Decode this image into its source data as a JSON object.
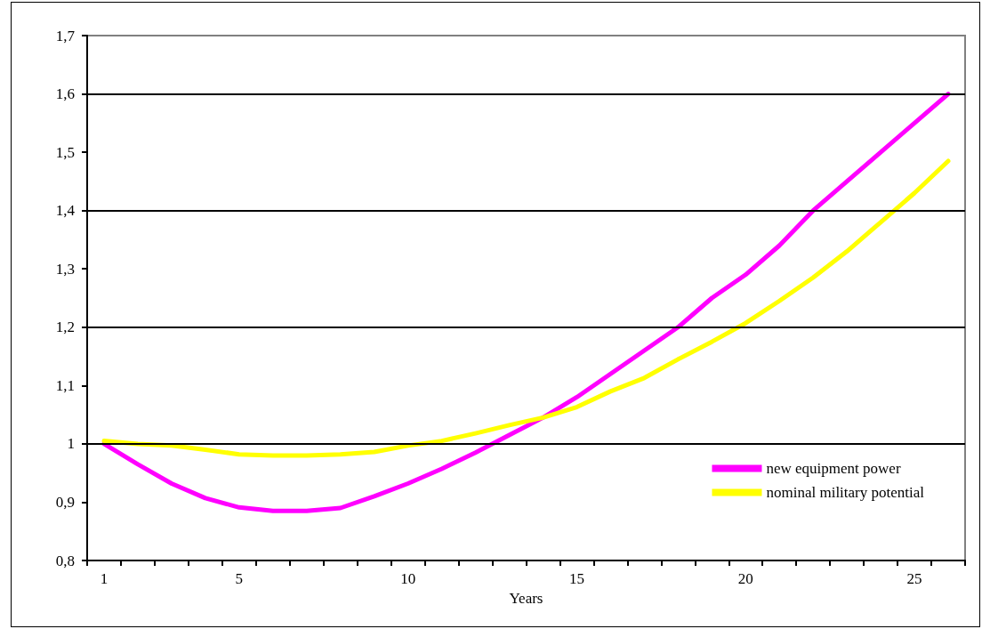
{
  "chart_data": {
    "type": "line",
    "xlabel": "Years",
    "categories": [
      "1",
      null,
      null,
      null,
      "5",
      null,
      null,
      null,
      null,
      "10",
      null,
      null,
      null,
      null,
      "15",
      null,
      null,
      null,
      null,
      "20",
      null,
      null,
      null,
      null,
      "25",
      null
    ],
    "series": [
      {
        "name": "new equipment power",
        "color": "#ff00ff",
        "values": [
          1.0,
          0.965,
          0.932,
          0.907,
          0.891,
          0.885,
          0.885,
          0.89,
          0.91,
          0.932,
          0.957,
          0.985,
          1.015,
          1.045,
          1.08,
          1.12,
          1.16,
          1.2,
          1.25,
          1.29,
          1.34,
          1.4,
          1.45,
          1.5,
          1.55,
          1.6
        ]
      },
      {
        "name": "nominal military potential",
        "color": "#ffff00",
        "values": [
          1.005,
          1.0,
          0.997,
          0.99,
          0.982,
          0.98,
          0.98,
          0.982,
          0.986,
          0.997,
          1.005,
          1.018,
          1.032,
          1.045,
          1.063,
          1.09,
          1.113,
          1.145,
          1.175,
          1.207,
          1.245,
          1.285,
          1.33,
          1.38,
          1.43,
          1.485
        ]
      }
    ],
    "ylim": [
      0.8,
      1.7
    ],
    "yticks": [
      {
        "value": 0.8,
        "label": "0,8"
      },
      {
        "value": 0.9,
        "label": "0,9"
      },
      1,
      {
        "value": 1.1,
        "label": "1,1"
      },
      {
        "value": 1.2,
        "label": "1,2"
      },
      {
        "value": 1.3,
        "label": "1,3"
      },
      {
        "value": 1.4,
        "label": "1,4"
      },
      {
        "value": 1.5,
        "label": "1,5"
      },
      {
        "value": 1.6,
        "label": "1,6"
      },
      {
        "value": 1.7,
        "label": "1,7"
      }
    ],
    "ref_lines": [
      {
        "axis": "y",
        "value": 1,
        "color": "#000000"
      },
      {
        "axis": "y",
        "value": 1.2,
        "color": "#000000"
      },
      {
        "axis": "y",
        "value": 1.4,
        "color": "#000000"
      },
      {
        "axis": "y",
        "value": 1.6,
        "color": "#000000"
      }
    ],
    "grid": false,
    "legend": "bottom right",
    "marker": "none",
    "line_style": "solid"
  }
}
